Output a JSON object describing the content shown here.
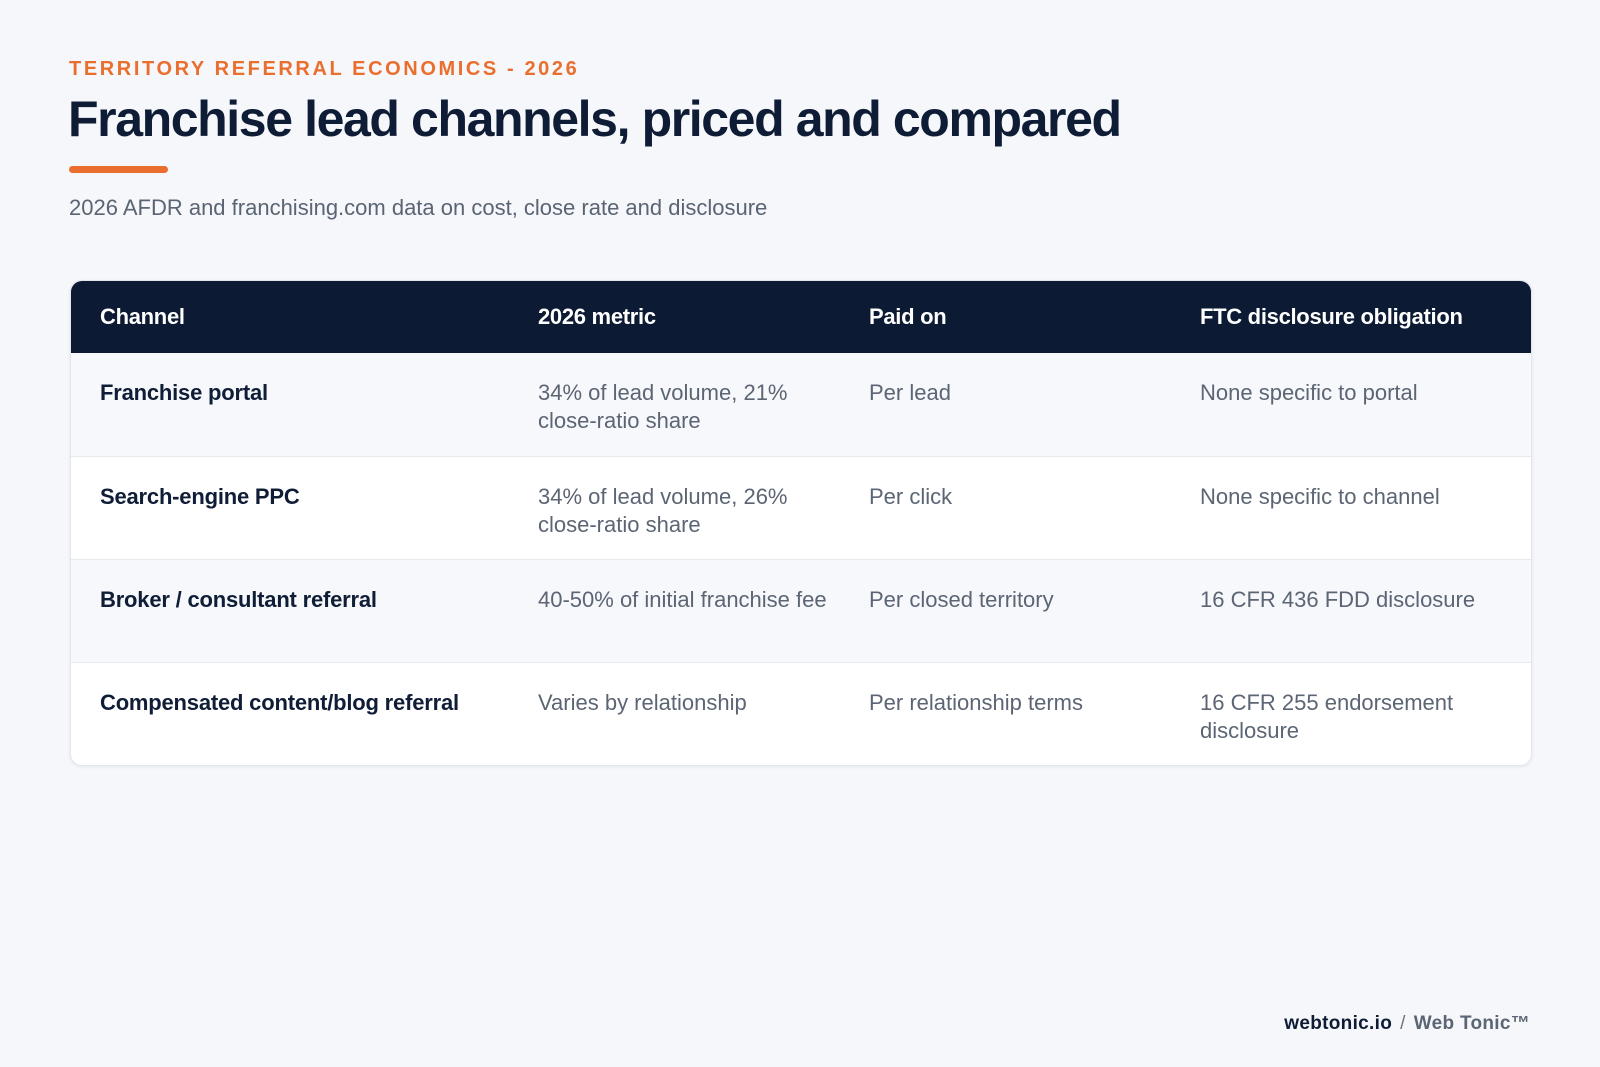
{
  "header": {
    "eyebrow": "TERRITORY REFERRAL ECONOMICS - 2026",
    "title": "Franchise lead channels, priced and compared",
    "subtitle": "2026 AFDR and franchising.com data on cost, close rate and disclosure"
  },
  "table": {
    "columns": [
      "Channel",
      "2026 metric",
      "Paid on",
      "FTC disclosure obligation"
    ],
    "rows": [
      {
        "channel": "Franchise portal",
        "metric": "34% of lead volume, 21% close-ratio share",
        "paid_on": "Per lead",
        "ftc": "None specific to portal"
      },
      {
        "channel": "Search-engine PPC",
        "metric": "34% of lead volume, 26% close-ratio share",
        "paid_on": "Per click",
        "ftc": "None specific to channel"
      },
      {
        "channel": "Broker / consultant referral",
        "metric": "40-50% of initial franchise fee",
        "paid_on": "Per closed territory",
        "ftc": "16 CFR 436 FDD disclosure"
      },
      {
        "channel": "Compensated content/blog referral",
        "metric": "Varies by relationship",
        "paid_on": "Per relationship terms",
        "ftc": "16 CFR 255 endorsement disclosure"
      }
    ]
  },
  "footer": {
    "domain": "webtonic.io",
    "separator": "/",
    "brand": "Web Tonic™"
  },
  "colors": {
    "accent": "#ea6f2e",
    "navy": "#0c1a33",
    "background": "#f5f7fa"
  }
}
